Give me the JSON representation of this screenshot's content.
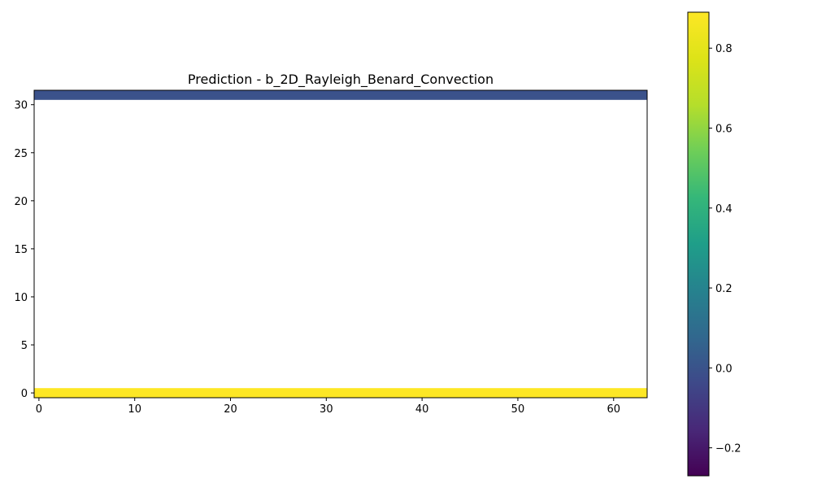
{
  "chart_data": {
    "type": "heatmap",
    "title": "Prediction - b_2D_Rayleigh_Benard_Convection",
    "xlabel": "",
    "ylabel": "",
    "grid": false,
    "x_range": [
      -0.5,
      63.5
    ],
    "y_range": [
      -0.5,
      31.5
    ],
    "x_ticks": [
      0,
      10,
      20,
      30,
      40,
      50,
      60
    ],
    "y_ticks": [
      0,
      5,
      10,
      15,
      20,
      25,
      30
    ],
    "colormap": "viridis",
    "colorbar": {
      "vmin": -0.27,
      "vmax": 0.89,
      "ticks": [
        -0.2,
        0.0,
        0.2,
        0.4,
        0.6,
        0.8
      ],
      "tick_labels": [
        "−0.2",
        "0.0",
        "0.2",
        "0.4",
        "0.6",
        "0.8"
      ]
    },
    "rows": [
      {
        "y": 31,
        "value": 0.0,
        "color": "#3b528b",
        "description": "top row (all columns)"
      },
      {
        "y": 0,
        "value": 0.89,
        "color": "#fde725",
        "description": "bottom row (all columns)"
      }
    ],
    "interior": "blank"
  }
}
